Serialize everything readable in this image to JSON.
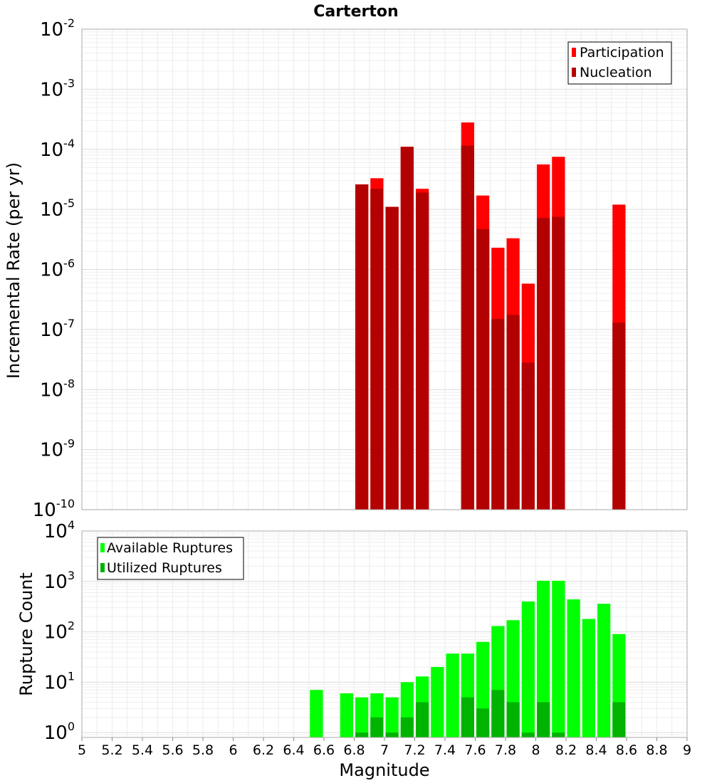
{
  "chart_data": [
    {
      "type": "bar",
      "title": "Carterton",
      "xlabel": "",
      "ylabel": "Incremental Rate (per yr)",
      "yscale": "log",
      "ylim": [
        1e-10,
        0.01
      ],
      "xlim": [
        5,
        9
      ],
      "ytick_base": "10",
      "ytick_exponents": [
        "-10",
        "-9",
        "-8",
        "-7",
        "-6",
        "-5",
        "-4",
        "-3",
        "-2"
      ],
      "legend": {
        "position": "top-right",
        "entries": [
          "Participation",
          "Nucleation"
        ]
      },
      "grid": true,
      "colors": {
        "Participation": "#ff0000",
        "Nucleation": "#b30000"
      },
      "bar_width": 0.1,
      "series": [
        {
          "name": "Participation",
          "x": [
            6.85,
            6.95,
            7.05,
            7.15,
            7.25,
            7.55,
            7.65,
            7.75,
            7.85,
            7.95,
            8.05,
            8.15,
            8.55
          ],
          "values": [
            2.6e-05,
            3.3e-05,
            1.1e-05,
            0.00011,
            2.2e-05,
            0.00028,
            1.7e-05,
            2.3e-06,
            3.3e-06,
            5.8e-07,
            5.6e-05,
            7.5e-05,
            1.2e-05
          ]
        },
        {
          "name": "Nucleation",
          "x": [
            6.85,
            6.95,
            7.05,
            7.15,
            7.25,
            7.55,
            7.65,
            7.75,
            7.85,
            7.95,
            8.05,
            8.15,
            8.55
          ],
          "values": [
            2.6e-05,
            2.2e-05,
            1.1e-05,
            0.00011,
            1.9e-05,
            0.000115,
            4.7e-06,
            1.5e-07,
            1.75e-07,
            2.8e-08,
            7.2e-06,
            7.5e-06,
            1.3e-07
          ]
        }
      ]
    },
    {
      "type": "bar",
      "title": "",
      "xlabel": "Magnitude",
      "ylabel": "Rupture Count",
      "yscale": "log",
      "ylim": [
        0.8,
        10000.0
      ],
      "xlim": [
        5,
        9
      ],
      "xticks": [
        "5",
        "5.2",
        "5.4",
        "5.6",
        "5.8",
        "6",
        "6.2",
        "6.4",
        "6.6",
        "6.8",
        "7",
        "7.2",
        "7.4",
        "7.6",
        "7.8",
        "8",
        "8.2",
        "8.4",
        "8.6",
        "8.8",
        "9"
      ],
      "ytick_base": "10",
      "ytick_exponents": [
        "0",
        "1",
        "2",
        "3",
        "4"
      ],
      "legend": {
        "position": "top-left",
        "entries": [
          "Available Ruptures",
          "Utilized Ruptures"
        ]
      },
      "grid": true,
      "colors": {
        "Available Ruptures": "#00ff00",
        "Utilized Ruptures": "#00b300"
      },
      "bar_width": 0.1,
      "series": [
        {
          "name": "Available Ruptures",
          "x": [
            6.55,
            6.75,
            6.85,
            6.95,
            7.05,
            7.15,
            7.25,
            7.35,
            7.45,
            7.55,
            7.65,
            7.75,
            7.85,
            7.95,
            8.05,
            8.15,
            8.25,
            8.35,
            8.45,
            8.55
          ],
          "values": [
            7,
            6,
            5,
            6,
            5,
            10,
            13,
            20,
            37,
            37,
            63,
            130,
            170,
            400,
            1030,
            1030,
            440,
            180,
            360,
            90
          ]
        },
        {
          "name": "Utilized Ruptures",
          "x": [
            6.85,
            6.95,
            7.05,
            7.15,
            7.25,
            7.55,
            7.65,
            7.75,
            7.85,
            7.95,
            8.05,
            8.15,
            8.55
          ],
          "values": [
            1,
            2,
            1,
            2,
            4,
            5,
            3,
            7,
            4,
            1,
            4,
            1,
            4
          ]
        }
      ]
    }
  ]
}
